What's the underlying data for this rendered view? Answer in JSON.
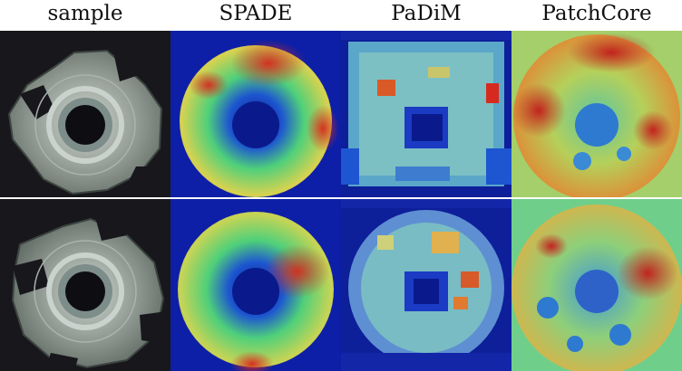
{
  "figure": {
    "columns": [
      {
        "key": "sample",
        "label": "sample"
      },
      {
        "key": "spade",
        "label": "SPADE"
      },
      {
        "key": "padim",
        "label": "PaDiM"
      },
      {
        "key": "patchcore",
        "label": "PatchCore"
      }
    ],
    "rows": [
      {
        "key": "row-1"
      },
      {
        "key": "row-2"
      }
    ],
    "colors": {
      "sample_background": "#18171c",
      "heatmap_low": "#0a1a8c",
      "heatmap_mid": "#4fd07a",
      "heatmap_high": "#d62a1e"
    }
  }
}
